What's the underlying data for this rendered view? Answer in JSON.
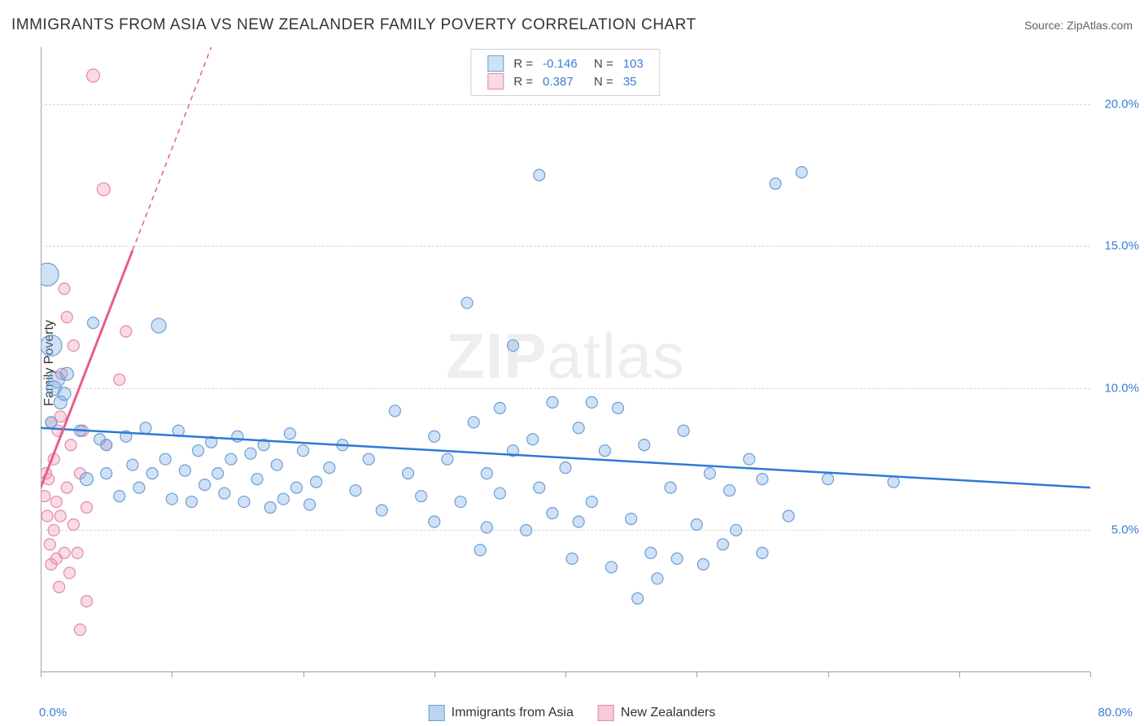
{
  "title": "IMMIGRANTS FROM ASIA VS NEW ZEALANDER FAMILY POVERTY CORRELATION CHART",
  "source": "Source: ZipAtlas.com",
  "ylabel": "Family Poverty",
  "watermark_bold": "ZIP",
  "watermark_light": "atlas",
  "chart": {
    "type": "scatter",
    "xlim": [
      0,
      80
    ],
    "ylim": [
      0,
      22
    ],
    "x_axis_min_label": "0.0%",
    "x_axis_max_label": "80.0%",
    "y_ticks": [
      5,
      10,
      15,
      20
    ],
    "y_tick_labels": [
      "5.0%",
      "10.0%",
      "15.0%",
      "20.0%"
    ],
    "x_tick_positions": [
      0,
      10,
      20,
      30,
      40,
      50,
      60,
      70,
      80
    ],
    "grid_color": "#d8d8d8",
    "axis_color": "#a0a0a0",
    "background_color": "#ffffff",
    "label_color": "#3b7dd8",
    "title_color": "#333333",
    "series": [
      {
        "name": "Immigrants from Asia",
        "short": "asia",
        "fill": "rgba(120,170,230,0.35)",
        "stroke": "#6a9fd4",
        "trend_color": "#2f78d6",
        "trend_dash": "",
        "R": "-0.146",
        "N": "103",
        "trend": {
          "x1": 0,
          "y1": 8.6,
          "x2": 80,
          "y2": 6.5
        },
        "points": [
          {
            "x": 0.5,
            "y": 14.0,
            "r": 14
          },
          {
            "x": 0.8,
            "y": 11.5,
            "r": 13
          },
          {
            "x": 1.2,
            "y": 10.3,
            "r": 10
          },
          {
            "x": 1.0,
            "y": 10.0,
            "r": 9
          },
          {
            "x": 1.5,
            "y": 9.5,
            "r": 8
          },
          {
            "x": 0.8,
            "y": 8.8,
            "r": 7
          },
          {
            "x": 2.0,
            "y": 10.5,
            "r": 8
          },
          {
            "x": 1.8,
            "y": 9.8,
            "r": 8
          },
          {
            "x": 3,
            "y": 8.5,
            "r": 7
          },
          {
            "x": 3.5,
            "y": 6.8,
            "r": 8
          },
          {
            "x": 4,
            "y": 12.3,
            "r": 7
          },
          {
            "x": 4.5,
            "y": 8.2,
            "r": 7
          },
          {
            "x": 5,
            "y": 7.0,
            "r": 7
          },
          {
            "x": 5,
            "y": 8.0,
            "r": 7
          },
          {
            "x": 6,
            "y": 6.2,
            "r": 7
          },
          {
            "x": 6.5,
            "y": 8.3,
            "r": 7
          },
          {
            "x": 7,
            "y": 7.3,
            "r": 7
          },
          {
            "x": 7.5,
            "y": 6.5,
            "r": 7
          },
          {
            "x": 8,
            "y": 8.6,
            "r": 7
          },
          {
            "x": 8.5,
            "y": 7.0,
            "r": 7
          },
          {
            "x": 9,
            "y": 12.2,
            "r": 9
          },
          {
            "x": 9.5,
            "y": 7.5,
            "r": 7
          },
          {
            "x": 10,
            "y": 6.1,
            "r": 7
          },
          {
            "x": 10.5,
            "y": 8.5,
            "r": 7
          },
          {
            "x": 11,
            "y": 7.1,
            "r": 7
          },
          {
            "x": 11.5,
            "y": 6.0,
            "r": 7
          },
          {
            "x": 12,
            "y": 7.8,
            "r": 7
          },
          {
            "x": 12.5,
            "y": 6.6,
            "r": 7
          },
          {
            "x": 13,
            "y": 8.1,
            "r": 7
          },
          {
            "x": 13.5,
            "y": 7.0,
            "r": 7
          },
          {
            "x": 14,
            "y": 6.3,
            "r": 7
          },
          {
            "x": 14.5,
            "y": 7.5,
            "r": 7
          },
          {
            "x": 15,
            "y": 8.3,
            "r": 7
          },
          {
            "x": 15.5,
            "y": 6.0,
            "r": 7
          },
          {
            "x": 16,
            "y": 7.7,
            "r": 7
          },
          {
            "x": 16.5,
            "y": 6.8,
            "r": 7
          },
          {
            "x": 17,
            "y": 8.0,
            "r": 7
          },
          {
            "x": 17.5,
            "y": 5.8,
            "r": 7
          },
          {
            "x": 18,
            "y": 7.3,
            "r": 7
          },
          {
            "x": 18.5,
            "y": 6.1,
            "r": 7
          },
          {
            "x": 19,
            "y": 8.4,
            "r": 7
          },
          {
            "x": 19.5,
            "y": 6.5,
            "r": 7
          },
          {
            "x": 20,
            "y": 7.8,
            "r": 7
          },
          {
            "x": 20.5,
            "y": 5.9,
            "r": 7
          },
          {
            "x": 21,
            "y": 6.7,
            "r": 7
          },
          {
            "x": 22,
            "y": 7.2,
            "r": 7
          },
          {
            "x": 23,
            "y": 8.0,
            "r": 7
          },
          {
            "x": 24,
            "y": 6.4,
            "r": 7
          },
          {
            "x": 25,
            "y": 7.5,
            "r": 7
          },
          {
            "x": 26,
            "y": 5.7,
            "r": 7
          },
          {
            "x": 27,
            "y": 9.2,
            "r": 7
          },
          {
            "x": 28,
            "y": 7.0,
            "r": 7
          },
          {
            "x": 29,
            "y": 6.2,
            "r": 7
          },
          {
            "x": 30,
            "y": 8.3,
            "r": 7
          },
          {
            "x": 30,
            "y": 5.3,
            "r": 7
          },
          {
            "x": 31,
            "y": 7.5,
            "r": 7
          },
          {
            "x": 32,
            "y": 6.0,
            "r": 7
          },
          {
            "x": 32.5,
            "y": 13.0,
            "r": 7
          },
          {
            "x": 33,
            "y": 8.8,
            "r": 7
          },
          {
            "x": 33.5,
            "y": 4.3,
            "r": 7
          },
          {
            "x": 34,
            "y": 7.0,
            "r": 7
          },
          {
            "x": 34,
            "y": 5.1,
            "r": 7
          },
          {
            "x": 35,
            "y": 9.3,
            "r": 7
          },
          {
            "x": 35,
            "y": 6.3,
            "r": 7
          },
          {
            "x": 36,
            "y": 7.8,
            "r": 7
          },
          {
            "x": 36,
            "y": 11.5,
            "r": 7
          },
          {
            "x": 37,
            "y": 5.0,
            "r": 7
          },
          {
            "x": 37.5,
            "y": 8.2,
            "r": 7
          },
          {
            "x": 38,
            "y": 17.5,
            "r": 7
          },
          {
            "x": 38,
            "y": 6.5,
            "r": 7
          },
          {
            "x": 39,
            "y": 9.5,
            "r": 7
          },
          {
            "x": 39,
            "y": 5.6,
            "r": 7
          },
          {
            "x": 40,
            "y": 7.2,
            "r": 7
          },
          {
            "x": 40.5,
            "y": 4.0,
            "r": 7
          },
          {
            "x": 41,
            "y": 8.6,
            "r": 7
          },
          {
            "x": 41,
            "y": 5.3,
            "r": 7
          },
          {
            "x": 42,
            "y": 9.5,
            "r": 7
          },
          {
            "x": 42,
            "y": 6.0,
            "r": 7
          },
          {
            "x": 43,
            "y": 7.8,
            "r": 7
          },
          {
            "x": 43.5,
            "y": 3.7,
            "r": 7
          },
          {
            "x": 44,
            "y": 9.3,
            "r": 7
          },
          {
            "x": 45,
            "y": 5.4,
            "r": 7
          },
          {
            "x": 45.5,
            "y": 2.6,
            "r": 7
          },
          {
            "x": 46,
            "y": 8.0,
            "r": 7
          },
          {
            "x": 46.5,
            "y": 4.2,
            "r": 7
          },
          {
            "x": 47,
            "y": 3.3,
            "r": 7
          },
          {
            "x": 48,
            "y": 6.5,
            "r": 7
          },
          {
            "x": 48.5,
            "y": 4.0,
            "r": 7
          },
          {
            "x": 49,
            "y": 8.5,
            "r": 7
          },
          {
            "x": 50,
            "y": 5.2,
            "r": 7
          },
          {
            "x": 50.5,
            "y": 3.8,
            "r": 7
          },
          {
            "x": 51,
            "y": 7.0,
            "r": 7
          },
          {
            "x": 52,
            "y": 4.5,
            "r": 7
          },
          {
            "x": 52.5,
            "y": 6.4,
            "r": 7
          },
          {
            "x": 53,
            "y": 5.0,
            "r": 7
          },
          {
            "x": 54,
            "y": 7.5,
            "r": 7
          },
          {
            "x": 55,
            "y": 4.2,
            "r": 7
          },
          {
            "x": 55,
            "y": 6.8,
            "r": 7
          },
          {
            "x": 56,
            "y": 17.2,
            "r": 7
          },
          {
            "x": 57,
            "y": 5.5,
            "r": 7
          },
          {
            "x": 58,
            "y": 17.6,
            "r": 7
          },
          {
            "x": 60,
            "y": 6.8,
            "r": 7
          },
          {
            "x": 65,
            "y": 6.7,
            "r": 7
          }
        ]
      },
      {
        "name": "New Zealanders",
        "short": "nz",
        "fill": "rgba(240,150,175,0.35)",
        "stroke": "#e08ba5",
        "trend_color": "#e75d8a",
        "trend_dash": "6,5",
        "R": "0.387",
        "N": "35",
        "trend": {
          "x1": 0,
          "y1": 6.5,
          "x2": 13,
          "y2": 22
        },
        "trend_solid_to_x": 7,
        "points": [
          {
            "x": 0.3,
            "y": 6.2,
            "r": 7
          },
          {
            "x": 0.4,
            "y": 7.0,
            "r": 7
          },
          {
            "x": 0.5,
            "y": 5.5,
            "r": 7
          },
          {
            "x": 0.6,
            "y": 6.8,
            "r": 7
          },
          {
            "x": 0.7,
            "y": 4.5,
            "r": 7
          },
          {
            "x": 0.8,
            "y": 8.8,
            "r": 7
          },
          {
            "x": 0.8,
            "y": 3.8,
            "r": 7
          },
          {
            "x": 1.0,
            "y": 7.5,
            "r": 7
          },
          {
            "x": 1.0,
            "y": 5.0,
            "r": 7
          },
          {
            "x": 1.2,
            "y": 6.0,
            "r": 7
          },
          {
            "x": 1.2,
            "y": 4.0,
            "r": 7
          },
          {
            "x": 1.3,
            "y": 8.5,
            "r": 7
          },
          {
            "x": 1.4,
            "y": 3.0,
            "r": 7
          },
          {
            "x": 1.5,
            "y": 9.0,
            "r": 7
          },
          {
            "x": 1.5,
            "y": 5.5,
            "r": 7
          },
          {
            "x": 1.6,
            "y": 10.5,
            "r": 7
          },
          {
            "x": 1.8,
            "y": 13.5,
            "r": 7
          },
          {
            "x": 1.8,
            "y": 4.2,
            "r": 7
          },
          {
            "x": 2.0,
            "y": 12.5,
            "r": 7
          },
          {
            "x": 2.0,
            "y": 6.5,
            "r": 7
          },
          {
            "x": 2.2,
            "y": 3.5,
            "r": 7
          },
          {
            "x": 2.3,
            "y": 8.0,
            "r": 7
          },
          {
            "x": 2.5,
            "y": 5.2,
            "r": 7
          },
          {
            "x": 2.5,
            "y": 11.5,
            "r": 7
          },
          {
            "x": 2.8,
            "y": 4.2,
            "r": 7
          },
          {
            "x": 3.0,
            "y": 7.0,
            "r": 7
          },
          {
            "x": 3.0,
            "y": 1.5,
            "r": 7
          },
          {
            "x": 3.2,
            "y": 8.5,
            "r": 7
          },
          {
            "x": 3.5,
            "y": 5.8,
            "r": 7
          },
          {
            "x": 3.5,
            "y": 2.5,
            "r": 7
          },
          {
            "x": 4.0,
            "y": 21.0,
            "r": 8
          },
          {
            "x": 4.8,
            "y": 17.0,
            "r": 8
          },
          {
            "x": 5.0,
            "y": 8.0,
            "r": 7
          },
          {
            "x": 6.0,
            "y": 10.3,
            "r": 7
          },
          {
            "x": 6.5,
            "y": 12.0,
            "r": 7
          }
        ]
      }
    ]
  },
  "legend_bottom": [
    {
      "label": "Immigrants from Asia",
      "fill": "rgba(120,170,230,0.5)",
      "stroke": "#6a9fd4"
    },
    {
      "label": "New Zealanders",
      "fill": "rgba(240,150,175,0.5)",
      "stroke": "#e08ba5"
    }
  ]
}
